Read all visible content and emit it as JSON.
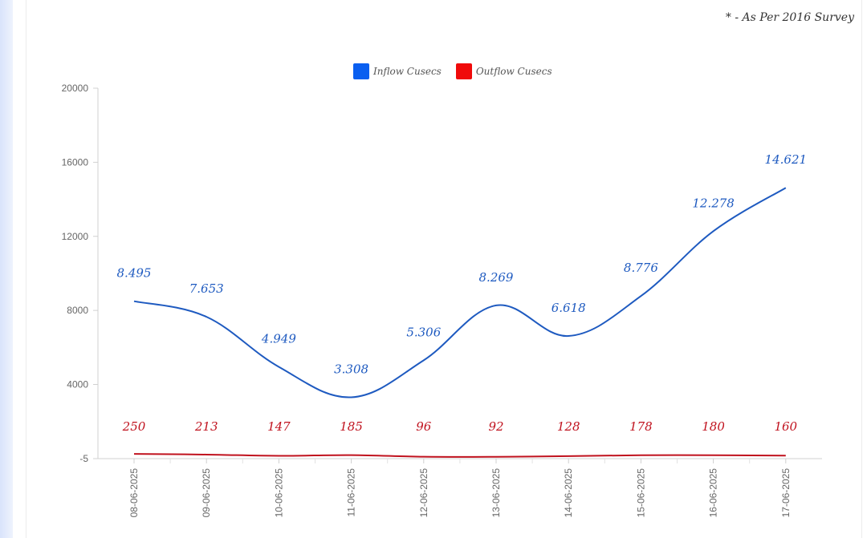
{
  "footnote": "* - As Per 2016 Survey",
  "colors": {
    "inflow": "#1e5ac0",
    "outflow": "#c0121e",
    "swatch_inflow": "#0a5ff0",
    "swatch_outflow": "#f00a0a"
  },
  "chart_data": {
    "type": "line",
    "title": "",
    "xlabel": "",
    "ylabel": "",
    "ylim": [
      -5,
      20000
    ],
    "yticks": [
      -5,
      4000,
      8000,
      12000,
      16000,
      20000
    ],
    "categories": [
      "08-06-2025",
      "09-06-2025",
      "10-06-2025",
      "11-06-2025",
      "12-06-2025",
      "13-06-2025",
      "14-06-2025",
      "15-06-2025",
      "16-06-2025",
      "17-06-2025"
    ],
    "legend_position": "top-center",
    "grid": false,
    "series": [
      {
        "name": "Inflow Cusecs",
        "values": [
          8495,
          7653,
          4949,
          3308,
          5306,
          8269,
          6618,
          8776,
          12278,
          14621
        ],
        "labels": [
          "8.495",
          "7.653",
          "4.949",
          "3.308",
          "5.306",
          "8.269",
          "6.618",
          "8.776",
          "12.278",
          "14.621"
        ]
      },
      {
        "name": "Outflow Cusecs",
        "values": [
          250,
          213,
          147,
          185,
          96,
          92,
          128,
          178,
          180,
          160
        ],
        "labels": [
          "250",
          "213",
          "147",
          "185",
          "96",
          "92",
          "128",
          "178",
          "180",
          "160"
        ]
      }
    ]
  }
}
